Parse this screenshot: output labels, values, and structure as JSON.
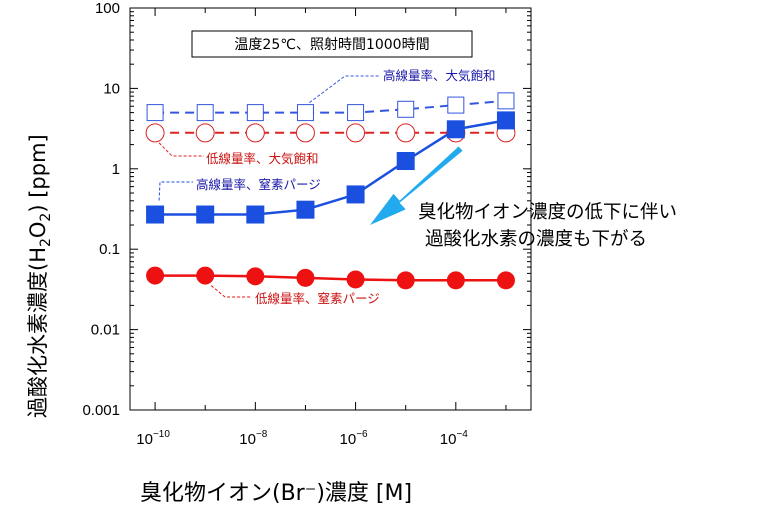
{
  "chart_data": {
    "type": "scatter",
    "x_scale": "log",
    "y_scale": "log",
    "xlim": [
      3.16e-11,
      0.00316
    ],
    "ylim": [
      0.001,
      100
    ],
    "grid": false,
    "legend": "none",
    "xlabel": "臭化物イオン(Br⁻)濃度 [M]",
    "ylabel_parts": {
      "pre": "過酸化水素濃度(H",
      "sub1": "2",
      "mid": "O",
      "sub2": "2",
      "post": ")  [ppm]"
    },
    "y_tick_labels": [
      "100",
      "10",
      "1",
      "0.1",
      "0.01",
      "0.001"
    ],
    "x_tick_labels": [
      {
        "base": "10",
        "exp": "−10"
      },
      {
        "base": "10",
        "exp": "−8"
      },
      {
        "base": "10",
        "exp": "−6"
      },
      {
        "base": "10",
        "exp": "−4"
      }
    ],
    "x": [
      1e-10,
      1e-09,
      1e-08,
      1e-07,
      1e-06,
      1e-05,
      0.0001,
      0.001
    ],
    "series": [
      {
        "name": "高線量率、大気飽和",
        "color": "#3355dd",
        "marker": "square-open",
        "line": "dashed",
        "values": [
          5.0,
          5.0,
          5.0,
          5.0,
          5.0,
          5.5,
          6.2,
          7.0
        ]
      },
      {
        "name": "低線量率、大気飽和",
        "color": "#dd2222",
        "marker": "circle-open",
        "line": "dashed",
        "values": [
          2.8,
          2.8,
          2.8,
          2.8,
          2.8,
          2.8,
          2.8,
          2.8
        ]
      },
      {
        "name": "高線量率、窒素パージ",
        "color": "#1a4fe0",
        "marker": "square-filled",
        "line": "solid",
        "values": [
          0.27,
          0.27,
          0.27,
          0.31,
          0.48,
          1.25,
          3.1,
          4.0
        ]
      },
      {
        "name": "低線量率、窒素パージ",
        "color": "#ee1111",
        "marker": "circle-filled",
        "line": "solid",
        "values": [
          0.047,
          0.047,
          0.046,
          0.044,
          0.042,
          0.041,
          0.041,
          0.041
        ]
      }
    ],
    "conditions_box": "温度25℃、照射時間1000時間",
    "callout_lines": [
      "臭化物イオン濃度の低下に伴い",
      "過酸化水素の濃度も下がる"
    ],
    "arrow_color": "#22aaee"
  }
}
